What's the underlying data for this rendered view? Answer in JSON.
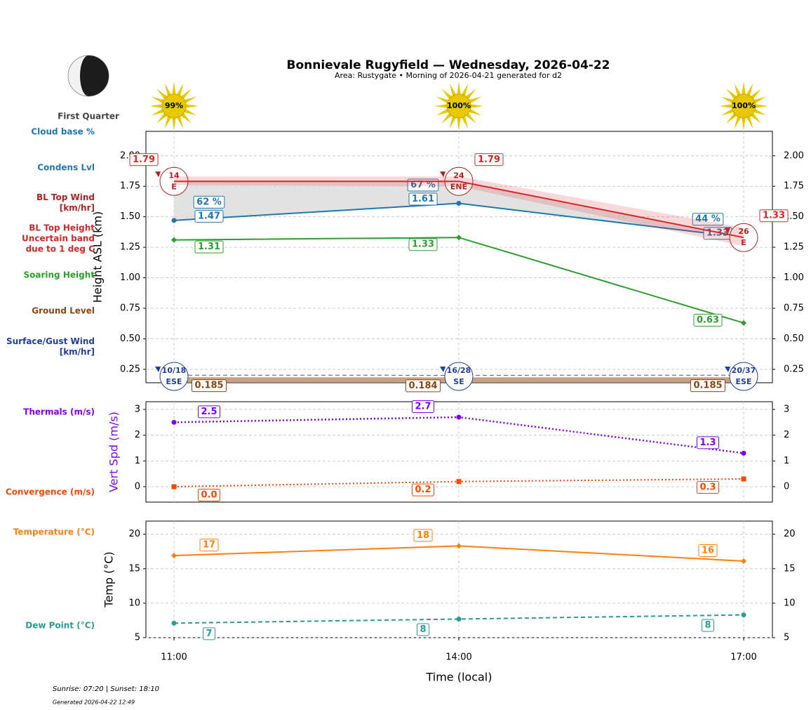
{
  "header": {
    "title": "Bonnievale Rugyfield — Wednesday, 2026-04-22",
    "subtitle": "Area: Rustygate • Morning of 2026-04-21 generated for d2"
  },
  "moon": {
    "phase": "First Quarter"
  },
  "sun": {
    "values": [
      99,
      100,
      100
    ],
    "value_labels": [
      "99%",
      "100%",
      "100%"
    ],
    "color": "#e8c800"
  },
  "chart_data": [
    {
      "type": "line",
      "y_label": "Height ASL (km)",
      "ylim": [
        0.14,
        2.2
      ],
      "yticks": [
        0.25,
        {
          "value": 0.5,
          "label": "0.50"
        },
        0.75,
        {
          "value": 1,
          "label": "1.00"
        },
        1.25,
        {
          "value": 1.5,
          "label": "1.50"
        },
        1.75,
        {
          "value": 2,
          "label": "2.00"
        }
      ],
      "grid": true,
      "series": [
        {
          "name": "Cloud base %",
          "kind": "labels",
          "color": "#1f77b4",
          "values": [
            62,
            67,
            44
          ],
          "value_labels": [
            "62 %",
            "67 %",
            "44 %"
          ]
        },
        {
          "name": "Condens Lvl",
          "kind": "line",
          "color": "#1f77b4",
          "marker": "circle",
          "values": [
            1.47,
            1.61,
            1.33
          ]
        },
        {
          "name": "BL Top Wind [km/hr]",
          "kind": "wind",
          "color": "#b22222",
          "values": [
            14,
            24,
            26
          ],
          "directions": [
            "E",
            "ENE",
            "E"
          ]
        },
        {
          "name": "BL Top Height Uncertain band due to 1 deg C",
          "kind": "band",
          "color": "#d62728",
          "values": [
            1.79,
            1.79,
            1.33
          ],
          "band_low": [
            1.76,
            1.75,
            1.26
          ],
          "band_high": [
            1.83,
            1.83,
            1.41
          ]
        },
        {
          "name": "Soaring Height",
          "kind": "line",
          "color": "#2ca02c",
          "marker": "diamond",
          "values": [
            1.31,
            1.33,
            0.63
          ]
        },
        {
          "name": "Ground Level",
          "kind": "area",
          "color": "#8b4513",
          "values": [
            0.185,
            0.184,
            0.185
          ]
        },
        {
          "name": "Surface/Gust Wind [km/hr]",
          "kind": "wind",
          "color": "#1f3fa0",
          "values": [
            10,
            16,
            20
          ],
          "gusts": [
            18,
            28,
            37
          ],
          "value_labels": [
            "10/18",
            "16/28",
            "20/37"
          ],
          "directions": [
            "ESE",
            "SE",
            "ESE"
          ]
        }
      ]
    },
    {
      "type": "line",
      "y_label": "Vert Spd (m/s)",
      "y_label_color": "#8000ff",
      "ylim": [
        -0.6,
        3.3
      ],
      "yticks": [
        0,
        1,
        2,
        3
      ],
      "grid": true,
      "series": [
        {
          "name": "Thermals (m/s)",
          "kind": "line",
          "color": "#8000ff",
          "marker": "circle",
          "dash": "dotted",
          "values": [
            2.5,
            2.7,
            1.3
          ]
        },
        {
          "name": "Convergence (m/s)",
          "kind": "line",
          "color": "#ff4500",
          "marker": "square",
          "dash": "dotted",
          "values": [
            0,
            0.2,
            0.3
          ],
          "value_labels": [
            "0.0",
            "0.2",
            "0.3"
          ]
        }
      ]
    },
    {
      "type": "line",
      "y_label": "Temp (°C)",
      "x_label": "Time (local)",
      "x": [
        "11:00",
        "14:00",
        "17:00"
      ],
      "ylim": [
        5,
        21.9
      ],
      "yticks": [
        5,
        10,
        15,
        20
      ],
      "grid": true,
      "series": [
        {
          "name": "Temperature (°C)",
          "kind": "line",
          "color": "#ff7f0e",
          "marker": "diamond",
          "values": [
            16.9,
            18.3,
            16.1
          ],
          "value_labels": [
            "17",
            "18",
            "16"
          ]
        },
        {
          "name": "Dew Point (°C)",
          "kind": "line",
          "color": "#2a9d8f",
          "marker": "circle",
          "dash": "dashed",
          "values": [
            7.1,
            7.7,
            8.3
          ],
          "value_labels": [
            "7",
            "8",
            "8"
          ]
        }
      ]
    }
  ],
  "footer": {
    "sun_times": "Sunrise: 07:20 | Sunset: 18:10",
    "generated": "Generated 2026-04-22 12:49"
  }
}
